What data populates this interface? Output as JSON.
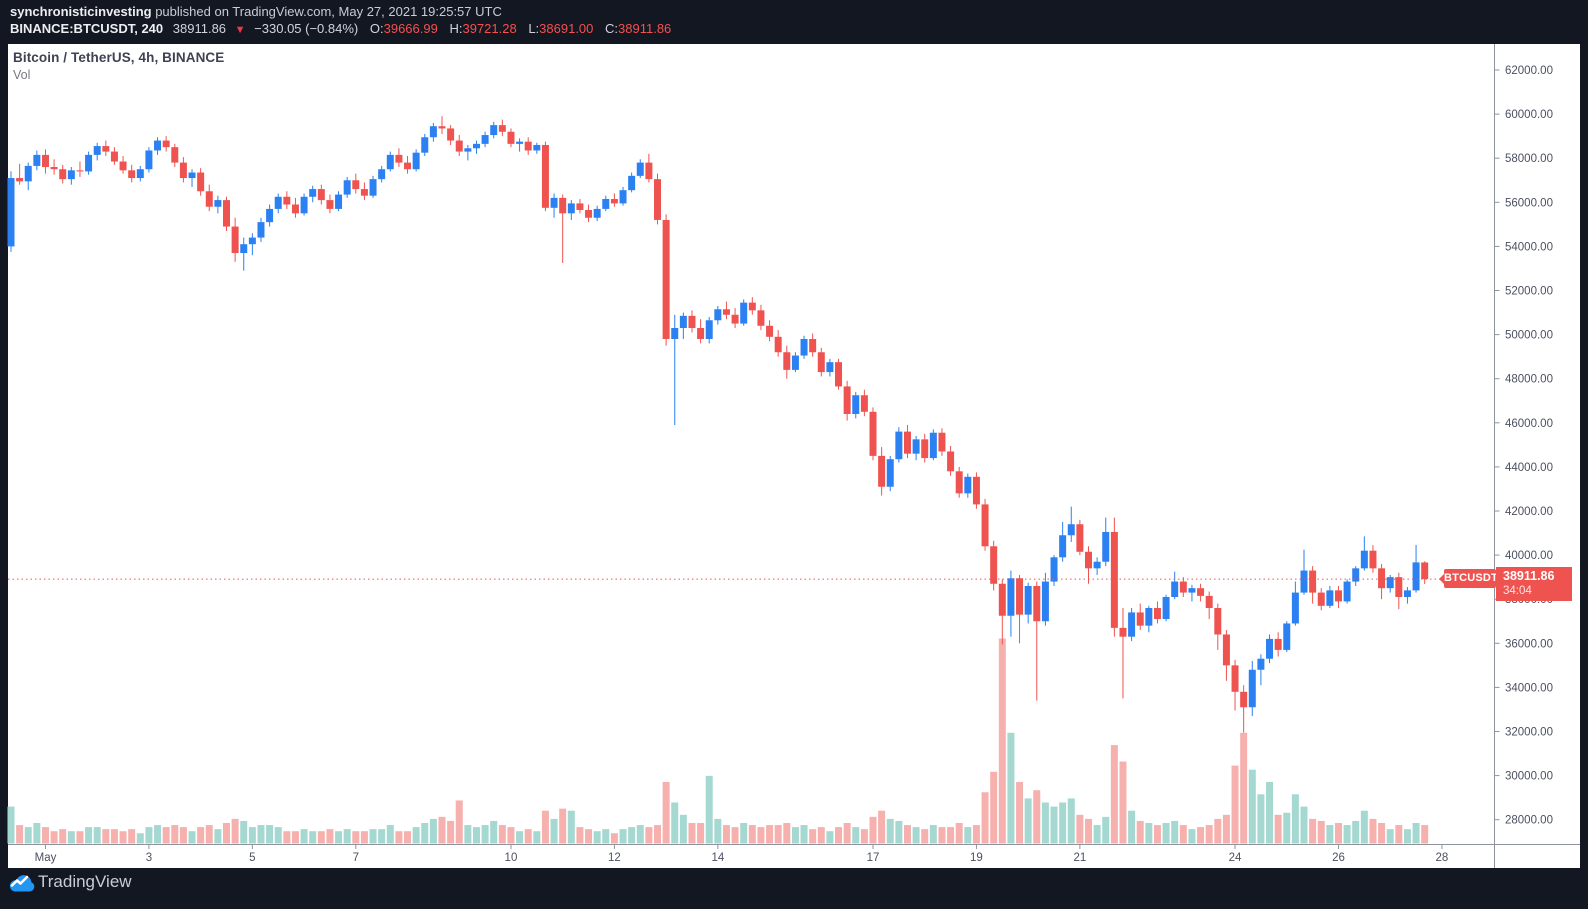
{
  "header": {
    "user": "synchronisticinvesting",
    "rest": " published on TradingView.com, May 27, 2021 19:25:57 UTC"
  },
  "symbol_bar": {
    "symbol": "BINANCE:BTCUSDT, 240",
    "price": "38911.86",
    "arrow": "▼",
    "change": "−330.05 (−0.84%)",
    "o_label": "O:",
    "o": "39666.99",
    "h_label": "H:",
    "h": "39721.28",
    "l_label": "L:",
    "l": "38691.00",
    "c_label": "C:",
    "c": "38911.86"
  },
  "legend": {
    "title": "Bitcoin / TetherUS, 4h, BINANCE",
    "vol_label": "Vol"
  },
  "tags": {
    "chart_label": "BTCUSDT",
    "price": "38911.86",
    "countdown": "34:04"
  },
  "footer": {
    "brand": "TradingView"
  },
  "colors": {
    "background": "#131722",
    "chart_bg": "#ffffff",
    "up": "#2b80f2",
    "down": "#ef5350",
    "vol_up": "#a5d8d0",
    "vol_down": "#f6b1af",
    "axis_line": "#8f939c",
    "axis_text": "#4c5060",
    "price_line": "#ef5350",
    "tag_bg": "#ef5350",
    "logo_blue": "#2196f3"
  },
  "chart_data": {
    "type": "candlestick",
    "title": "Bitcoin / TetherUS",
    "interval": "4h",
    "exchange": "BINANCE",
    "current_price": 38911.86,
    "countdown": "34:04",
    "price_axis": {
      "tick_min": 28000,
      "tick_max": 62000,
      "tick_step": 2000,
      "format_decimals": 2
    },
    "time_axis": {
      "labels": [
        {
          "label": "May",
          "candle_index": 4
        },
        {
          "label": "3",
          "candle_index": 16
        },
        {
          "label": "5",
          "candle_index": 28
        },
        {
          "label": "7",
          "candle_index": 40
        },
        {
          "label": "10",
          "candle_index": 58
        },
        {
          "label": "12",
          "candle_index": 70
        },
        {
          "label": "14",
          "candle_index": 82
        },
        {
          "label": "17",
          "candle_index": 100
        },
        {
          "label": "19",
          "candle_index": 112
        },
        {
          "label": "21",
          "candle_index": 124
        },
        {
          "label": "24",
          "candle_index": 142
        },
        {
          "label": "26",
          "candle_index": 154
        },
        {
          "label": "28",
          "candle_index": 166
        }
      ]
    },
    "volume_unit": "kBTC",
    "candles": [
      [
        54000,
        57400,
        53750,
        57100,
        18
      ],
      [
        57100,
        57750,
        56800,
        56950,
        9
      ],
      [
        56950,
        57800,
        56550,
        57650,
        8
      ],
      [
        57650,
        58350,
        57450,
        58150,
        10
      ],
      [
        58150,
        58400,
        57300,
        57600,
        8
      ],
      [
        57600,
        57950,
        57250,
        57500,
        6
      ],
      [
        57500,
        57700,
        56850,
        57050,
        7
      ],
      [
        57050,
        57600,
        56800,
        57450,
        6
      ],
      [
        57450,
        57850,
        57150,
        57400,
        6
      ],
      [
        57400,
        58300,
        57250,
        58150,
        8
      ],
      [
        58150,
        58700,
        57900,
        58550,
        8
      ],
      [
        58550,
        58800,
        58100,
        58300,
        7
      ],
      [
        58300,
        58500,
        57700,
        57850,
        7
      ],
      [
        57850,
        58100,
        57300,
        57450,
        6
      ],
      [
        57450,
        57700,
        56900,
        57100,
        7
      ],
      [
        57100,
        57650,
        56950,
        57500,
        5
      ],
      [
        57500,
        58500,
        57350,
        58350,
        8
      ],
      [
        58350,
        58950,
        58150,
        58800,
        9
      ],
      [
        58800,
        59000,
        58300,
        58500,
        8
      ],
      [
        58500,
        58650,
        57600,
        57800,
        9
      ],
      [
        57800,
        58050,
        56900,
        57100,
        8
      ],
      [
        57100,
        57500,
        56700,
        57350,
        6
      ],
      [
        57350,
        57550,
        56300,
        56500,
        8
      ],
      [
        56500,
        56800,
        55600,
        55800,
        9
      ],
      [
        55800,
        56300,
        55500,
        56100,
        7
      ],
      [
        56100,
        56250,
        54700,
        54900,
        10
      ],
      [
        54900,
        55300,
        53300,
        53700,
        12
      ],
      [
        53700,
        54400,
        52900,
        54100,
        11
      ],
      [
        54100,
        54600,
        53600,
        54400,
        8
      ],
      [
        54400,
        55300,
        54200,
        55100,
        9
      ],
      [
        55100,
        55900,
        54900,
        55700,
        9
      ],
      [
        55700,
        56400,
        55500,
        56250,
        8
      ],
      [
        56250,
        56500,
        55700,
        55900,
        6
      ],
      [
        55900,
        56200,
        55300,
        55500,
        6
      ],
      [
        55500,
        56400,
        55400,
        56250,
        7
      ],
      [
        56250,
        56750,
        56000,
        56600,
        6
      ],
      [
        56600,
        56800,
        55900,
        56100,
        6
      ],
      [
        56100,
        56350,
        55500,
        55700,
        7
      ],
      [
        55700,
        56500,
        55600,
        56350,
        6
      ],
      [
        56350,
        57150,
        56200,
        57000,
        7
      ],
      [
        57000,
        57300,
        56400,
        56600,
        6
      ],
      [
        56600,
        56900,
        56100,
        56300,
        6
      ],
      [
        56300,
        57200,
        56200,
        57050,
        7
      ],
      [
        57050,
        57650,
        56900,
        57500,
        7
      ],
      [
        57500,
        58300,
        57400,
        58150,
        9
      ],
      [
        58150,
        58450,
        57600,
        57800,
        6
      ],
      [
        57800,
        58100,
        57300,
        57500,
        6
      ],
      [
        57500,
        58400,
        57400,
        58250,
        8
      ],
      [
        58250,
        59100,
        58100,
        58950,
        10
      ],
      [
        58950,
        59600,
        58750,
        59450,
        12
      ],
      [
        59450,
        59900,
        59100,
        59350,
        13
      ],
      [
        59350,
        59500,
        58600,
        58800,
        11
      ],
      [
        58800,
        59050,
        58100,
        58300,
        21
      ],
      [
        58300,
        58600,
        57900,
        58450,
        9
      ],
      [
        58450,
        58800,
        58200,
        58650,
        8
      ],
      [
        58650,
        59200,
        58500,
        59050,
        9
      ],
      [
        59050,
        59650,
        58900,
        59500,
        11
      ],
      [
        59500,
        59750,
        59000,
        59200,
        9
      ],
      [
        59200,
        59350,
        58500,
        58650,
        8
      ],
      [
        58650,
        58900,
        58300,
        58750,
        6
      ],
      [
        58750,
        58950,
        58150,
        58350,
        7
      ],
      [
        58350,
        58700,
        58200,
        58600,
        6
      ],
      [
        58600,
        58750,
        55600,
        55750,
        16
      ],
      [
        55750,
        56400,
        55300,
        56200,
        12
      ],
      [
        56200,
        56350,
        53250,
        55500,
        17
      ],
      [
        55500,
        56100,
        55200,
        55950,
        16
      ],
      [
        55950,
        56150,
        55500,
        55650,
        8
      ],
      [
        55650,
        55900,
        55100,
        55300,
        7
      ],
      [
        55300,
        55850,
        55150,
        55700,
        6
      ],
      [
        55700,
        56300,
        55600,
        56150,
        7
      ],
      [
        56150,
        56400,
        55800,
        55950,
        5
      ],
      [
        55950,
        56700,
        55850,
        56550,
        7
      ],
      [
        56550,
        57350,
        56450,
        57200,
        8
      ],
      [
        57200,
        57950,
        57100,
        57800,
        9
      ],
      [
        57800,
        58200,
        56900,
        57050,
        8
      ],
      [
        57050,
        57300,
        55000,
        55200,
        9
      ],
      [
        55200,
        55450,
        49500,
        49800,
        30
      ],
      [
        49800,
        50900,
        45900,
        50300,
        20
      ],
      [
        50300,
        51000,
        49800,
        50850,
        14
      ],
      [
        50850,
        51100,
        50100,
        50300,
        10
      ],
      [
        50300,
        50700,
        49600,
        49800,
        10
      ],
      [
        49800,
        50800,
        49600,
        50650,
        33
      ],
      [
        50650,
        51300,
        50450,
        51150,
        12
      ],
      [
        51150,
        51500,
        50700,
        50900,
        9
      ],
      [
        50900,
        51200,
        50300,
        50500,
        8
      ],
      [
        50500,
        51600,
        50400,
        51450,
        10
      ],
      [
        51450,
        51700,
        50900,
        51100,
        9
      ],
      [
        51100,
        51350,
        50200,
        50400,
        8
      ],
      [
        50400,
        50650,
        49700,
        49900,
        9
      ],
      [
        49900,
        50200,
        49000,
        49200,
        9
      ],
      [
        49200,
        49500,
        48000,
        48400,
        10
      ],
      [
        48400,
        49200,
        48300,
        49050,
        8
      ],
      [
        49050,
        49950,
        48900,
        49800,
        9
      ],
      [
        49800,
        50050,
        49000,
        49200,
        7
      ],
      [
        49200,
        49400,
        48100,
        48300,
        8
      ],
      [
        48300,
        48900,
        48100,
        48750,
        6
      ],
      [
        48750,
        48900,
        47500,
        47650,
        8
      ],
      [
        47650,
        47900,
        46100,
        46400,
        10
      ],
      [
        46400,
        47400,
        46200,
        47250,
        8
      ],
      [
        47250,
        47500,
        46300,
        46500,
        7
      ],
      [
        46500,
        46700,
        44300,
        44500,
        13
      ],
      [
        44500,
        44900,
        42700,
        43100,
        16
      ],
      [
        43100,
        44500,
        42900,
        44350,
        12
      ],
      [
        44350,
        45800,
        44200,
        45600,
        11
      ],
      [
        45600,
        45900,
        44400,
        44600,
        9
      ],
      [
        44600,
        45400,
        44300,
        45250,
        8
      ],
      [
        45250,
        45500,
        44200,
        44400,
        7
      ],
      [
        44400,
        45700,
        44300,
        45550,
        9
      ],
      [
        45550,
        45750,
        44500,
        44700,
        8
      ],
      [
        44700,
        44950,
        43600,
        43800,
        8
      ],
      [
        43800,
        44000,
        42600,
        42800,
        10
      ],
      [
        42800,
        43700,
        42600,
        43550,
        8
      ],
      [
        43550,
        43750,
        42100,
        42300,
        9
      ],
      [
        42300,
        42550,
        40200,
        40400,
        25
      ],
      [
        40400,
        40650,
        38400,
        38700,
        35
      ],
      [
        38700,
        38900,
        35950,
        37250,
        100
      ],
      [
        37250,
        39300,
        36300,
        38950,
        54
      ],
      [
        38950,
        39100,
        36000,
        37300,
        30
      ],
      [
        37300,
        38750,
        36900,
        38600,
        22
      ],
      [
        38600,
        38800,
        33400,
        37000,
        26
      ],
      [
        37000,
        39200,
        36800,
        38800,
        20
      ],
      [
        38800,
        40000,
        38600,
        39900,
        18
      ],
      [
        39900,
        41500,
        39700,
        40900,
        20
      ],
      [
        40900,
        42200,
        40600,
        41400,
        22
      ],
      [
        41400,
        41600,
        40000,
        40150,
        14
      ],
      [
        40150,
        40400,
        38700,
        39400,
        12
      ],
      [
        39400,
        39900,
        39100,
        39700,
        9
      ],
      [
        39700,
        41700,
        39500,
        41050,
        13
      ],
      [
        41050,
        41700,
        36300,
        36700,
        48
      ],
      [
        36700,
        37600,
        33500,
        36300,
        40
      ],
      [
        36300,
        37600,
        36100,
        37400,
        16
      ],
      [
        37400,
        37800,
        36600,
        36800,
        11
      ],
      [
        36800,
        37700,
        36500,
        37600,
        10
      ],
      [
        37600,
        37900,
        36900,
        37100,
        9
      ],
      [
        37100,
        38200,
        37000,
        38100,
        10
      ],
      [
        38100,
        39250,
        38000,
        38800,
        11
      ],
      [
        38800,
        39000,
        38100,
        38300,
        9
      ],
      [
        38300,
        38650,
        37900,
        38500,
        7
      ],
      [
        38500,
        38700,
        37900,
        38150,
        8
      ],
      [
        38150,
        38350,
        37100,
        37600,
        9
      ],
      [
        37600,
        37800,
        35700,
        36400,
        12
      ],
      [
        36400,
        36600,
        34300,
        35000,
        14
      ],
      [
        35000,
        35250,
        32950,
        33800,
        38
      ],
      [
        33800,
        34100,
        31950,
        33100,
        54
      ],
      [
        33100,
        35200,
        32700,
        34800,
        36
      ],
      [
        34800,
        35500,
        34100,
        35300,
        24
      ],
      [
        35300,
        36400,
        35100,
        36200,
        30
      ],
      [
        36200,
        36500,
        35400,
        35700,
        14
      ],
      [
        35700,
        37000,
        35600,
        36900,
        15
      ],
      [
        36900,
        38800,
        36800,
        38300,
        24
      ],
      [
        38300,
        40250,
        38200,
        39300,
        18
      ],
      [
        39300,
        39500,
        37800,
        38300,
        12
      ],
      [
        38300,
        38500,
        37500,
        37700,
        11
      ],
      [
        37700,
        38600,
        37600,
        38400,
        9
      ],
      [
        38400,
        38600,
        37600,
        37900,
        10
      ],
      [
        37900,
        38900,
        37800,
        38800,
        9
      ],
      [
        38800,
        39500,
        38600,
        39400,
        11
      ],
      [
        39400,
        40850,
        39300,
        40200,
        16
      ],
      [
        40200,
        40450,
        39200,
        39400,
        12
      ],
      [
        39400,
        39600,
        38000,
        38500,
        10
      ],
      [
        38500,
        39100,
        38300,
        39000,
        7
      ],
      [
        39000,
        39200,
        37550,
        38100,
        9
      ],
      [
        38100,
        38550,
        37800,
        38400,
        7
      ],
      [
        38400,
        40460,
        38300,
        39670,
        10
      ],
      [
        39666.99,
        39721.28,
        38691.0,
        38911.86,
        9
      ]
    ]
  }
}
